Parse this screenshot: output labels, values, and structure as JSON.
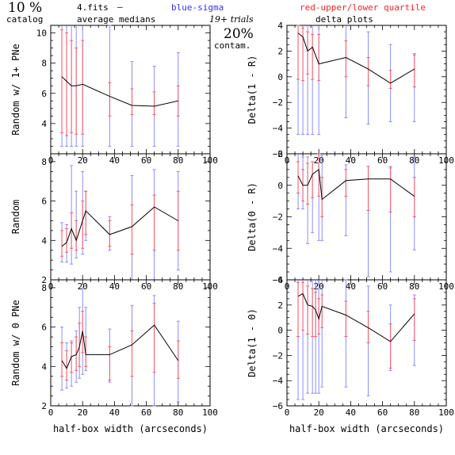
{
  "header": {
    "percent": "10 %",
    "catalog": "catalog",
    "fits": "4.fits",
    "dash": "–",
    "average_medians": "average medians",
    "blue_legend": "blue-sigma",
    "red_legend": "red-upper/lower quartile",
    "trials": "19+ trials",
    "delta_plots": "delta plots",
    "contam_pct": "20%",
    "contam": "contam."
  },
  "colors": {
    "line": "#000000",
    "sigma": "#8080ff",
    "quartile": "#ff5050",
    "text_blue": "#3333ff",
    "text_red": "#ff2020"
  },
  "chart_data": [
    {
      "type": "line",
      "ylabel": "Random w/ 1+ PNe",
      "xlim": [
        0,
        100
      ],
      "ylim": [
        2,
        10.5
      ],
      "xticks": [
        0,
        20,
        40,
        60,
        80,
        100
      ],
      "yticks": [
        4,
        6,
        8,
        10
      ],
      "x": [
        7,
        10,
        13,
        16,
        20,
        37,
        51,
        65,
        80
      ],
      "y": [
        7.1,
        6.8,
        6.5,
        6.5,
        6.6,
        5.8,
        5.2,
        5.15,
        5.5
      ],
      "sigma": [
        [
          2.5,
          11
        ],
        [
          2.5,
          11
        ],
        [
          2.5,
          11
        ],
        [
          2.5,
          11
        ],
        [
          2.5,
          11
        ],
        [
          2.5,
          10.5
        ],
        [
          2.5,
          8.1
        ],
        [
          2.5,
          7.8
        ],
        [
          2.5,
          8.7
        ]
      ],
      "quartile": [
        [
          3.4,
          10.2
        ],
        [
          3.2,
          10
        ],
        [
          3.4,
          9.5
        ],
        [
          3.3,
          9
        ],
        [
          3.3,
          9.5
        ],
        [
          4.5,
          6.7
        ],
        [
          4.6,
          6.3
        ],
        [
          4.6,
          6.1
        ],
        [
          4.5,
          6.5
        ]
      ]
    },
    {
      "type": "line",
      "ylabel": "Delta(1 - R)",
      "xlim": [
        0,
        100
      ],
      "ylim": [
        -6,
        4
      ],
      "xticks": [
        0,
        20,
        40,
        60,
        80,
        100
      ],
      "yticks": [
        -6,
        -4,
        -2,
        0,
        2,
        4
      ],
      "x": [
        7,
        10,
        13,
        16,
        20,
        37,
        51,
        65,
        80
      ],
      "y": [
        3.4,
        3.1,
        2.0,
        2.3,
        1.0,
        1.5,
        0.6,
        -0.5,
        0.6
      ],
      "sigma": [
        [
          -4.5,
          4.5
        ],
        [
          -4.5,
          4.5
        ],
        [
          -4.5,
          4.5
        ],
        [
          -4.5,
          4.5
        ],
        [
          -4.5,
          4.5
        ],
        [
          -3.2,
          4.2
        ],
        [
          -3.7,
          3.5
        ],
        [
          -3.5,
          2.5
        ],
        [
          -3.5,
          1.8
        ]
      ],
      "quartile": [
        [
          -0.2,
          4.0
        ],
        [
          -0.3,
          3.8
        ],
        [
          0.2,
          3.5
        ],
        [
          -0.2,
          3.3
        ],
        [
          -0.3,
          3.3
        ],
        [
          0.0,
          2.8
        ],
        [
          -0.7,
          1.5
        ],
        [
          -0.9,
          0.5
        ],
        [
          -0.8,
          1.7
        ]
      ]
    },
    {
      "type": "line",
      "ylabel": "Random",
      "xlim": [
        0,
        100
      ],
      "ylim": [
        2,
        8.4
      ],
      "xticks": [
        0,
        20,
        40,
        60,
        80,
        100
      ],
      "yticks": [
        2,
        4,
        6,
        8
      ],
      "x": [
        7,
        10,
        13,
        16,
        20,
        22,
        37,
        51,
        65,
        80
      ],
      "y": [
        3.7,
        3.9,
        4.6,
        4.0,
        5.0,
        5.5,
        4.3,
        4.7,
        5.7,
        5.0
      ],
      "sigma": [
        [
          2.9,
          4.9
        ],
        [
          2.9,
          4.8
        ],
        [
          2.8,
          7.8
        ],
        [
          3.1,
          6.5
        ],
        [
          3.3,
          7.5
        ],
        [
          4.0,
          6.5
        ],
        [
          3.5,
          5.2
        ],
        [
          2.0,
          7.3
        ],
        [
          2.0,
          7.6
        ],
        [
          2.5,
          7.5
        ]
      ],
      "quartile": [
        [
          3.2,
          4.5
        ],
        [
          3.4,
          4.6
        ],
        [
          3.6,
          5.4
        ],
        [
          3.5,
          5.0
        ],
        [
          3.6,
          6.0
        ],
        [
          4.3,
          6.5
        ],
        [
          3.7,
          5.0
        ],
        [
          3.3,
          5.8
        ],
        [
          3.5,
          6.3
        ],
        [
          3.5,
          6.5
        ]
      ]
    },
    {
      "type": "line",
      "ylabel": "Delta(0 - R)",
      "xlim": [
        0,
        100
      ],
      "ylim": [
        -6,
        2
      ],
      "xticks": [
        0,
        20,
        40,
        60,
        80,
        100
      ],
      "yticks": [
        -6,
        -4,
        -2,
        0,
        2
      ],
      "x": [
        7,
        10,
        13,
        16,
        20,
        22,
        37,
        51,
        65,
        80
      ],
      "y": [
        0.6,
        0.0,
        0.0,
        0.7,
        1.0,
        -0.9,
        0.3,
        0.4,
        0.4,
        -0.7
      ],
      "sigma": [
        [
          -1.5,
          2.2
        ],
        [
          -1.5,
          1.8
        ],
        [
          -3.7,
          1.8
        ],
        [
          -3.0,
          1.5
        ],
        [
          -3.5,
          2.0
        ],
        [
          -3.5,
          1.9
        ],
        [
          -3.2,
          1.3
        ],
        [
          -5.8,
          1.2
        ],
        [
          -5.5,
          1.2
        ],
        [
          -4.1,
          1.8
        ]
      ],
      "quartile": [
        [
          -0.5,
          1.5
        ],
        [
          -1.0,
          1.0
        ],
        [
          -1.2,
          1.4
        ],
        [
          -0.8,
          1.5
        ],
        [
          -0.7,
          2.0
        ],
        [
          -2.0,
          0.5
        ],
        [
          -0.7,
          1.0
        ],
        [
          -1.6,
          1.2
        ],
        [
          -1.7,
          1.1
        ],
        [
          -2.0,
          0.5
        ]
      ]
    },
    {
      "type": "line",
      "ylabel": "Random w/ 0 PNe",
      "xlim": [
        0,
        100
      ],
      "ylim": [
        2,
        8.4
      ],
      "xticks": [
        0,
        20,
        40,
        60,
        80,
        100
      ],
      "yticks": [
        2,
        4,
        6,
        8
      ],
      "x": [
        7,
        10,
        13,
        16,
        18,
        20,
        22,
        37,
        51,
        65,
        80
      ],
      "y": [
        4.3,
        3.9,
        4.5,
        4.6,
        5.0,
        5.8,
        4.6,
        4.6,
        5.1,
        6.1,
        4.3
      ],
      "sigma": [
        [
          2.8,
          6.0
        ],
        [
          2.9,
          5.2
        ],
        [
          3.0,
          5.3
        ],
        [
          3.2,
          5.8
        ],
        [
          3.4,
          7.0
        ],
        [
          3.6,
          8.0
        ],
        [
          3.8,
          7.0
        ],
        [
          3.2,
          5.9
        ],
        [
          2.0,
          7.1
        ],
        [
          2.0,
          7.6
        ],
        [
          2.2,
          6.3
        ]
      ],
      "quartile": [
        [
          3.5,
          5.2
        ],
        [
          3.3,
          4.8
        ],
        [
          3.7,
          5.2
        ],
        [
          3.8,
          5.5
        ],
        [
          4.0,
          6.2
        ],
        [
          4.7,
          6.8
        ],
        [
          4.0,
          5.5
        ],
        [
          3.3,
          5.0
        ],
        [
          3.5,
          5.8
        ],
        [
          3.7,
          7.2
        ],
        [
          3.4,
          5.3
        ]
      ]
    },
    {
      "type": "line",
      "ylabel": "Delta(1 - 0)",
      "xlabel": "half-box width (arcseconds)",
      "xlim": [
        0,
        100
      ],
      "ylim": [
        -6,
        4
      ],
      "xticks": [
        0,
        20,
        40,
        60,
        80,
        100
      ],
      "yticks": [
        -6,
        -4,
        -2,
        0,
        2,
        4
      ],
      "x": [
        7,
        10,
        13,
        16,
        18,
        20,
        22,
        37,
        51,
        65,
        80
      ],
      "y": [
        2.7,
        2.9,
        2.0,
        1.9,
        1.6,
        0.9,
        1.9,
        1.2,
        0.2,
        -0.9,
        1.3
      ],
      "sigma": [
        [
          -5.5,
          4.5
        ],
        [
          -5.5,
          4.5
        ],
        [
          -5.0,
          4.5
        ],
        [
          -5.0,
          4.5
        ],
        [
          -5.0,
          4.5
        ],
        [
          -5.0,
          4.5
        ],
        [
          -4.5,
          4.5
        ],
        [
          -4.5,
          4.0
        ],
        [
          -5.2,
          3.5
        ],
        [
          -3.2,
          2.0
        ],
        [
          -2.8,
          2.8
        ]
      ],
      "quartile": [
        [
          -0.5,
          3.8
        ],
        [
          0.0,
          3.8
        ],
        [
          -0.3,
          3.5
        ],
        [
          -0.5,
          3.3
        ],
        [
          -0.5,
          3.0
        ],
        [
          -0.3,
          2.5
        ],
        [
          0.2,
          2.8
        ],
        [
          -0.5,
          2.3
        ],
        [
          -1.0,
          1.5
        ],
        [
          -3.0,
          0.5
        ],
        [
          -0.8,
          2.5
        ]
      ]
    }
  ],
  "bottom_xlabel": "half-box width (arcseconds)"
}
